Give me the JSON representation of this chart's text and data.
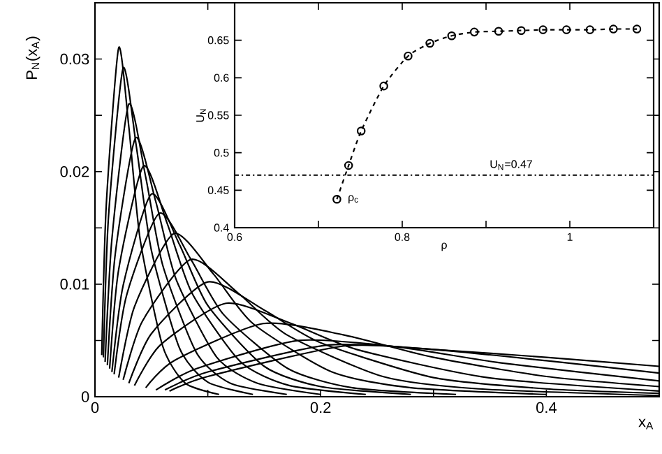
{
  "chart_data": [
    {
      "type": "line",
      "xlabel": "x$_{A}$",
      "ylabel": "P$_{N}$(x$_{A}$)",
      "xlim": [
        0,
        0.5
      ],
      "ylim": [
        0,
        0.035
      ],
      "xticks": [
        0,
        {
          "value": 0.1,
          "label": null
        },
        0.2,
        {
          "value": 0.3,
          "label": null
        },
        0.4
      ],
      "yticks": [
        0,
        {
          "value": 0.005,
          "label": null
        },
        0.01,
        {
          "value": 0.015,
          "label": null
        },
        0.02,
        {
          "value": 0.025,
          "label": null
        },
        0.03
      ],
      "grid": false,
      "marker": "none",
      "line_style": "solid",
      "series": [
        {
          "color": "#000000",
          "x": [
            0.006,
            0.01,
            0.021,
            0.03,
            0.04,
            0.06,
            0.08,
            0.11
          ],
          "values": [
            0.0037,
            0.017,
            0.031,
            0.024,
            0.014,
            0.0045,
            0.0012,
            0.0002
          ]
        },
        {
          "color": "#000000",
          "x": [
            0.0075,
            0.012,
            0.025,
            0.037,
            0.05,
            0.075,
            0.1,
            0.14
          ],
          "values": [
            0.0035,
            0.016,
            0.0292,
            0.022,
            0.013,
            0.0043,
            0.0013,
            0.0002
          ]
        },
        {
          "color": "#000000",
          "x": [
            0.009,
            0.015,
            0.03,
            0.045,
            0.06,
            0.09,
            0.12,
            0.17
          ],
          "values": [
            0.0031,
            0.014,
            0.026,
            0.0195,
            0.0117,
            0.0039,
            0.0012,
            0.0002
          ]
        },
        {
          "color": "#000000",
          "x": [
            0.011,
            0.018,
            0.036,
            0.054,
            0.072,
            0.108,
            0.144,
            0.2
          ],
          "values": [
            0.0028,
            0.0127,
            0.023,
            0.0173,
            0.0104,
            0.0035,
            0.0012,
            0.0002
          ]
        },
        {
          "color": "#000000",
          "x": [
            0.013,
            0.021,
            0.043,
            0.064,
            0.086,
            0.129,
            0.172,
            0.24
          ],
          "values": [
            0.0025,
            0.0113,
            0.0205,
            0.0154,
            0.0092,
            0.0031,
            0.001,
            0.0002
          ]
        },
        {
          "color": "#000000",
          "x": [
            0.015,
            0.025,
            0.05,
            0.075,
            0.1,
            0.15,
            0.2,
            0.28
          ],
          "values": [
            0.0022,
            0.0099,
            0.018,
            0.0135,
            0.0081,
            0.0027,
            0.0009,
            0.0002
          ]
        },
        {
          "color": "#000000",
          "x": [
            0.017,
            0.028,
            0.057,
            0.085,
            0.114,
            0.171,
            0.228,
            0.32
          ],
          "values": [
            0.002,
            0.009,
            0.0163,
            0.0122,
            0.0073,
            0.0025,
            0.0008,
            0.0002
          ]
        },
        {
          "color": "#000000",
          "x": [
            0.021,
            0.035,
            0.07,
            0.105,
            0.14,
            0.21,
            0.28,
            0.4
          ],
          "values": [
            0.0017,
            0.008,
            0.0145,
            0.0109,
            0.0065,
            0.0022,
            0.0008,
            0.0002
          ]
        },
        {
          "color": "#000000",
          "x": [
            0.025,
            0.042,
            0.085,
            0.127,
            0.17,
            0.255,
            0.34,
            0.5
          ],
          "values": [
            0.0015,
            0.0067,
            0.0122,
            0.0092,
            0.0055,
            0.0018,
            0.0007,
            0.0001
          ]
        },
        {
          "color": "#000000",
          "x": [
            0.03,
            0.05,
            0.1,
            0.15,
            0.2,
            0.3,
            0.4,
            0.5
          ],
          "values": [
            0.0012,
            0.0056,
            0.0102,
            0.0077,
            0.0048,
            0.0017,
            0.0007,
            0.0003
          ]
        },
        {
          "color": "#000000",
          "x": [
            0.035,
            0.058,
            0.116,
            0.174,
            0.232,
            0.348,
            0.5
          ],
          "values": [
            0.001,
            0.0046,
            0.0083,
            0.0065,
            0.0042,
            0.0017,
            0.0005
          ]
        },
        {
          "color": "#000000",
          "x": [
            0.045,
            0.07,
            0.149,
            0.22,
            0.3,
            0.4,
            0.5
          ],
          "values": [
            0.0008,
            0.0032,
            0.0065,
            0.0055,
            0.0035,
            0.0018,
            0.0009
          ]
        },
        {
          "color": "#000000",
          "x": [
            0.054,
            0.09,
            0.181,
            0.27,
            0.36,
            0.5
          ],
          "values": [
            0.0006,
            0.0025,
            0.005,
            0.0044,
            0.003,
            0.0014
          ]
        },
        {
          "color": "#000000",
          "x": [
            0.062,
            0.1,
            0.207,
            0.3,
            0.4,
            0.5
          ],
          "values": [
            0.0006,
            0.0022,
            0.0046,
            0.0042,
            0.0032,
            0.0021
          ]
        },
        {
          "color": "#000000",
          "x": [
            0.066,
            0.1,
            0.22,
            0.3,
            0.4,
            0.5
          ],
          "values": [
            0.0005,
            0.0018,
            0.0045,
            0.0042,
            0.0035,
            0.0027
          ]
        }
      ]
    },
    {
      "type": "line",
      "xlabel": "ρ",
      "ylabel": "U$_{N}$",
      "xlim": [
        0.6,
        1.1
      ],
      "ylim": [
        0.4,
        0.7
      ],
      "xticks": [
        0.6,
        {
          "value": 0.7,
          "label": null
        },
        0.8,
        {
          "value": 0.9,
          "label": null
        },
        1
      ],
      "yticks": [
        0.4,
        0.45,
        0.5,
        0.55,
        0.6,
        0.65
      ],
      "grid": false,
      "marker": "circle",
      "line_style": "dashed",
      "series": [
        {
          "color": "#000000",
          "x": [
            0.722,
            0.736,
            0.751,
            0.778,
            0.807,
            0.833,
            0.859,
            0.886,
            0.915,
            0.942,
            0.968,
            0.996,
            1.024,
            1.052,
            1.08
          ],
          "values": [
            0.438,
            0.483,
            0.529,
            0.589,
            0.629,
            0.646,
            0.656,
            0.661,
            0.662,
            0.663,
            0.664,
            0.664,
            0.664,
            0.665,
            0.665
          ]
        }
      ],
      "ref_lines": [
        {
          "axis": "y",
          "value": 0.47,
          "label": "U$_{N}$=0.47",
          "line_style": "dashdotted",
          "color": "#000000"
        }
      ],
      "annotations": [
        {
          "text": "ρ$_{c}$",
          "x": 0.722,
          "y": 0.438
        }
      ]
    }
  ]
}
